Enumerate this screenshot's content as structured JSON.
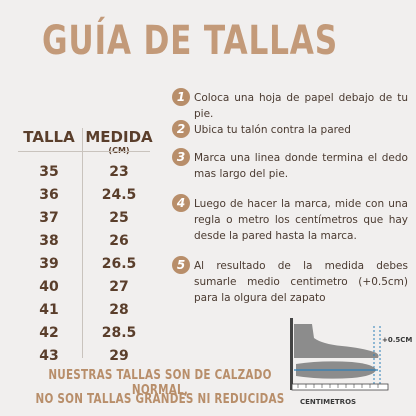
{
  "title": "GUÍA DE TALLAS",
  "table": {
    "col_size": "TALLA",
    "col_measure": "MEDIDA",
    "measure_unit": "(CM)",
    "rows": [
      {
        "size": "35",
        "cm": "23"
      },
      {
        "size": "36",
        "cm": "24.5"
      },
      {
        "size": "37",
        "cm": "25"
      },
      {
        "size": "38",
        "cm": "26"
      },
      {
        "size": "39",
        "cm": "26.5"
      },
      {
        "size": "40",
        "cm": "27"
      },
      {
        "size": "41",
        "cm": "28"
      },
      {
        "size": "42",
        "cm": "28.5"
      },
      {
        "size": "43",
        "cm": "29"
      }
    ]
  },
  "steps": [
    {
      "number": "1",
      "text": "Coloca una hoja de papel debajo de tu pie."
    },
    {
      "number": "2",
      "text": "Ubica tu talón contra la pared"
    },
    {
      "number": "3",
      "text": "Marca una linea donde termina el dedo mas largo del pie."
    },
    {
      "number": "4",
      "text": "Luego de hacer la marca, mide con una regla o metro los centímetros que hay desde la pared hasta la marca."
    },
    {
      "number": "5",
      "text": "Al resultado de la medida debes sumarle medio centimetro (+0.5cm) para la olgura del zapato"
    }
  ],
  "illustration": {
    "plus_label": "+0.5CM",
    "ruler_label": "CENTIMETROS"
  },
  "footer": {
    "line1": "NUESTRAS TALLAS SON DE CALZADO NORMAL,",
    "line2": "NO SON TALLAS GRANDES NI REDUCIDAS"
  },
  "colors": {
    "accent": "#b88e6a",
    "text_dark": "#5a3e2b",
    "background": "#f1efee"
  }
}
